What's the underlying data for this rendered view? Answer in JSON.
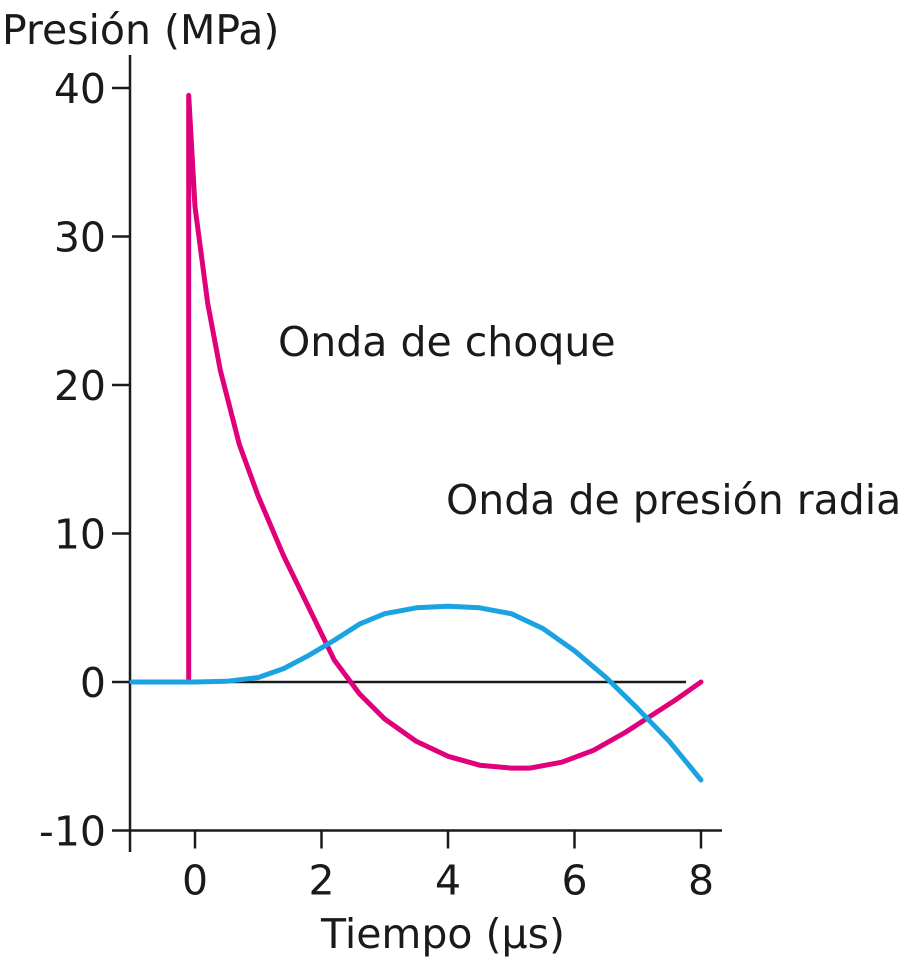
{
  "chart_data": {
    "type": "line",
    "ylabel": "Presión (MPa)",
    "xlabel": "Tiempo (µs)",
    "x_ticks": [
      0,
      2,
      4,
      6,
      8
    ],
    "y_ticks": [
      -10,
      0,
      10,
      20,
      30,
      40
    ],
    "xlim": [
      -1,
      8.4
    ],
    "ylim": [
      -10,
      42
    ],
    "grid": false,
    "legend": "none",
    "series": [
      {
        "name": "Onda de choque",
        "color": "#e0007a",
        "x": [
          -1,
          -0.2,
          -0.1,
          -0.1,
          0,
          0.2,
          0.4,
          0.7,
          1,
          1.4,
          1.8,
          2.2,
          2.6,
          3,
          3.5,
          4,
          4.5,
          5,
          5.3,
          5.8,
          6.3,
          6.8,
          7.2,
          7.6,
          8
        ],
        "y": [
          0,
          0,
          0,
          39.5,
          32,
          25.5,
          21,
          16,
          12.5,
          8.5,
          5,
          1.5,
          -0.8,
          -2.5,
          -4,
          -5,
          -5.6,
          -5.8,
          -5.8,
          -5.4,
          -4.6,
          -3.4,
          -2.3,
          -1.2,
          0
        ]
      },
      {
        "name": "Onda de presión radial",
        "color": "#1aa3e0",
        "x": [
          -1,
          0,
          0.5,
          1,
          1.4,
          1.8,
          2.2,
          2.6,
          3,
          3.5,
          4,
          4.5,
          5,
          5.5,
          6,
          6.5,
          7,
          7.5,
          8
        ],
        "y": [
          0,
          0,
          0.05,
          0.3,
          0.9,
          1.8,
          2.8,
          3.9,
          4.6,
          5,
          5.1,
          5,
          4.6,
          3.6,
          2.1,
          0.3,
          -1.8,
          -4,
          -6.6
        ]
      }
    ],
    "annotations": [
      "Onda de choque",
      "Onda de presión radial"
    ]
  }
}
